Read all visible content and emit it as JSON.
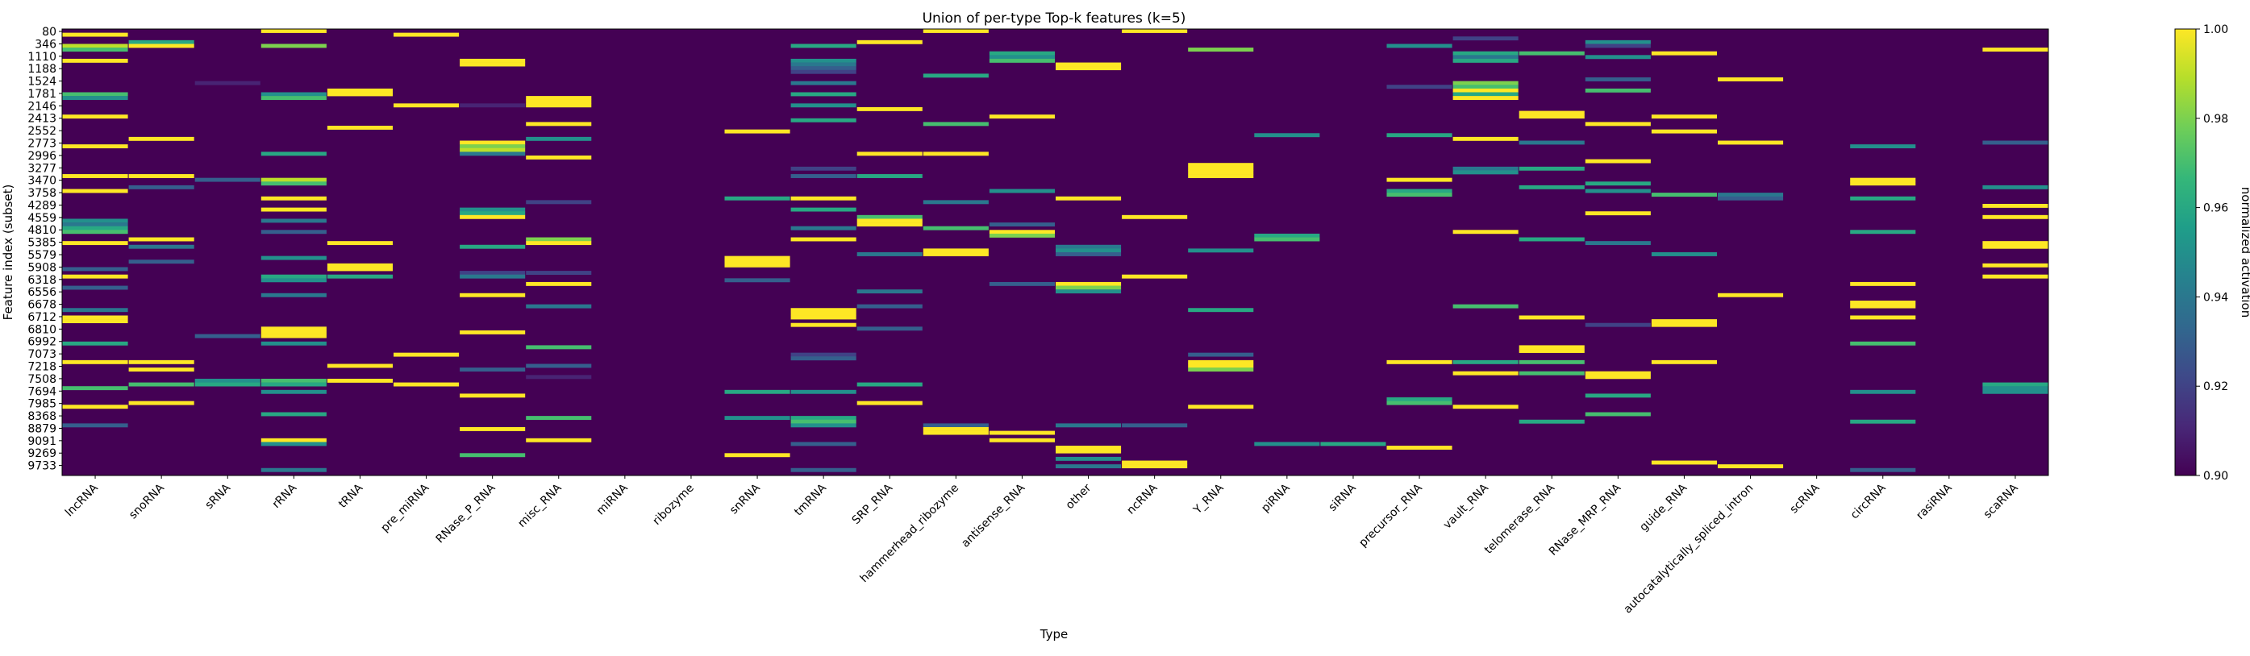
{
  "chart_data": {
    "type": "heatmap",
    "title": "Union of per-type Top-k features (k=5)",
    "xlabel": "Type",
    "ylabel": "Feature index (subset)",
    "colorbar": {
      "label": "normalized activation",
      "min": 0.9,
      "max": 1.0,
      "ticks": [
        "0.90",
        "0.92",
        "0.94",
        "0.96",
        "0.98",
        "1.00"
      ],
      "colormap": "viridis",
      "colors": [
        "#440154",
        "#482878",
        "#3e4989",
        "#31688e",
        "#26828e",
        "#1f9e89",
        "#35b779",
        "#6ece58",
        "#b5de2b",
        "#fde725"
      ]
    },
    "x_categories": [
      "lncRNA",
      "snoRNA",
      "sRNA",
      "rRNA",
      "tRNA",
      "pre_miRNA",
      "RNase_P_RNA",
      "misc_RNA",
      "miRNA",
      "ribozyme",
      "snRNA",
      "tmRNA",
      "SRP_RNA",
      "hammerhead_ribozyme",
      "antisense_RNA",
      "other",
      "ncRNA",
      "Y_RNA",
      "piRNA",
      "siRNA",
      "precursor_RNA",
      "vault_RNA",
      "telomerase_RNA",
      "RNase_MRP_RNA",
      "guide_RNA",
      "autocatalytically_spliced_intron",
      "scRNA",
      "circRNA",
      "rasiRNA",
      "scaRNA"
    ],
    "y_tick_labels": [
      "80",
      "346",
      "1110",
      "1188",
      "1524",
      "1781",
      "2146",
      "2413",
      "2552",
      "2773",
      "2996",
      "3277",
      "3470",
      "3758",
      "4289",
      "4559",
      "4810",
      "5385",
      "5579",
      "5908",
      "6318",
      "6556",
      "6678",
      "6712",
      "6810",
      "6992",
      "7073",
      "7218",
      "7508",
      "7694",
      "7985",
      "8368",
      "8879",
      "9091",
      "9269",
      "9733"
    ],
    "n_rows": 120,
    "background_value": 0.9,
    "cells": [
      [
        0,
        1,
        1.0
      ],
      [
        0,
        4,
        0.99
      ],
      [
        0,
        5,
        0.97
      ],
      [
        0,
        8,
        1.0
      ],
      [
        0,
        17,
        0.97
      ],
      [
        0,
        18,
        0.95
      ],
      [
        0,
        23,
        1.0
      ],
      [
        0,
        31,
        1.0
      ],
      [
        0,
        39,
        1.0
      ],
      [
        0,
        43,
        1.0
      ],
      [
        0,
        51,
        0.95
      ],
      [
        0,
        52,
        0.94
      ],
      [
        0,
        53,
        0.96
      ],
      [
        0,
        54,
        0.97
      ],
      [
        0,
        57,
        1.0
      ],
      [
        0,
        64,
        0.93
      ],
      [
        0,
        66,
        1.0
      ],
      [
        0,
        69,
        0.93
      ],
      [
        0,
        75,
        0.94
      ],
      [
        0,
        77,
        1.0
      ],
      [
        0,
        78,
        1.0
      ],
      [
        0,
        84,
        0.96
      ],
      [
        0,
        89,
        1.0
      ],
      [
        0,
        96,
        0.97
      ],
      [
        0,
        101,
        1.0
      ],
      [
        0,
        106,
        0.93
      ],
      [
        1,
        3,
        0.96
      ],
      [
        1,
        4,
        1.0
      ],
      [
        1,
        29,
        1.0
      ],
      [
        1,
        39,
        1.0
      ],
      [
        1,
        42,
        0.93
      ],
      [
        1,
        56,
        1.0
      ],
      [
        1,
        58,
        0.94
      ],
      [
        1,
        62,
        0.93
      ],
      [
        1,
        89,
        1.0
      ],
      [
        1,
        91,
        1.0
      ],
      [
        1,
        95,
        0.97
      ],
      [
        1,
        100,
        1.0
      ],
      [
        2,
        14,
        0.91
      ],
      [
        2,
        40,
        0.93
      ],
      [
        2,
        82,
        0.93
      ],
      [
        2,
        94,
        0.95
      ],
      [
        2,
        95,
        0.96
      ],
      [
        3,
        0,
        1.0
      ],
      [
        3,
        4,
        0.98
      ],
      [
        3,
        17,
        0.95
      ],
      [
        3,
        18,
        0.97
      ],
      [
        3,
        33,
        0.96
      ],
      [
        3,
        40,
        0.99
      ],
      [
        3,
        41,
        0.97
      ],
      [
        3,
        45,
        1.0
      ],
      [
        3,
        48,
        1.0
      ],
      [
        3,
        51,
        0.94
      ],
      [
        3,
        54,
        0.93
      ],
      [
        3,
        61,
        0.95
      ],
      [
        3,
        66,
        0.96
      ],
      [
        3,
        67,
        0.95
      ],
      [
        3,
        71,
        0.94
      ],
      [
        3,
        80,
        1.0
      ],
      [
        3,
        81,
        1.0
      ],
      [
        3,
        82,
        1.0
      ],
      [
        3,
        84,
        0.95
      ],
      [
        3,
        94,
        0.97
      ],
      [
        3,
        95,
        0.96
      ],
      [
        3,
        97,
        0.95
      ],
      [
        3,
        103,
        0.96
      ],
      [
        3,
        110,
        1.0
      ],
      [
        3,
        111,
        0.95
      ],
      [
        3,
        118,
        0.94
      ],
      [
        4,
        16,
        1.0
      ],
      [
        4,
        17,
        1.0
      ],
      [
        4,
        26,
        1.0
      ],
      [
        4,
        57,
        1.0
      ],
      [
        4,
        63,
        1.0
      ],
      [
        4,
        64,
        1.0
      ],
      [
        4,
        66,
        0.96
      ],
      [
        4,
        90,
        1.0
      ],
      [
        4,
        94,
        1.0
      ],
      [
        5,
        1,
        1.0
      ],
      [
        5,
        20,
        1.0
      ],
      [
        5,
        87,
        1.0
      ],
      [
        5,
        95,
        1.0
      ],
      [
        6,
        8,
        1.0
      ],
      [
        6,
        9,
        1.0
      ],
      [
        6,
        20,
        0.91
      ],
      [
        6,
        30,
        1.0
      ],
      [
        6,
        31,
        0.98
      ],
      [
        6,
        32,
        0.99
      ],
      [
        6,
        33,
        0.94
      ],
      [
        6,
        48,
        0.95
      ],
      [
        6,
        49,
        0.96
      ],
      [
        6,
        50,
        1.0
      ],
      [
        6,
        58,
        0.96
      ],
      [
        6,
        65,
        0.92
      ],
      [
        6,
        66,
        0.94
      ],
      [
        6,
        71,
        1.0
      ],
      [
        6,
        81,
        1.0
      ],
      [
        6,
        91,
        0.93
      ],
      [
        6,
        98,
        1.0
      ],
      [
        6,
        107,
        1.0
      ],
      [
        6,
        114,
        0.97
      ],
      [
        7,
        18,
        1.0
      ],
      [
        7,
        19,
        1.0
      ],
      [
        7,
        20,
        1.0
      ],
      [
        7,
        25,
        1.0
      ],
      [
        7,
        29,
        0.95
      ],
      [
        7,
        34,
        1.0
      ],
      [
        7,
        46,
        0.92
      ],
      [
        7,
        56,
        0.98
      ],
      [
        7,
        57,
        1.0
      ],
      [
        7,
        65,
        0.92
      ],
      [
        7,
        68,
        1.0
      ],
      [
        7,
        74,
        0.94
      ],
      [
        7,
        85,
        0.97
      ],
      [
        7,
        90,
        0.93
      ],
      [
        7,
        93,
        0.91
      ],
      [
        7,
        104,
        0.97
      ],
      [
        7,
        110,
        1.0
      ],
      [
        10,
        27,
        1.0
      ],
      [
        10,
        45,
        0.96
      ],
      [
        10,
        61,
        1.0
      ],
      [
        10,
        62,
        1.0
      ],
      [
        10,
        63,
        1.0
      ],
      [
        10,
        67,
        0.93
      ],
      [
        10,
        97,
        0.96
      ],
      [
        10,
        104,
        0.95
      ],
      [
        10,
        114,
        1.0
      ],
      [
        11,
        4,
        0.96
      ],
      [
        11,
        8,
        0.95
      ],
      [
        11,
        9,
        0.94
      ],
      [
        11,
        10,
        0.93
      ],
      [
        11,
        11,
        0.92
      ],
      [
        11,
        14,
        0.94
      ],
      [
        11,
        17,
        0.96
      ],
      [
        11,
        20,
        0.95
      ],
      [
        11,
        24,
        0.96
      ],
      [
        11,
        37,
        0.92
      ],
      [
        11,
        39,
        0.93
      ],
      [
        11,
        45,
        1.0
      ],
      [
        11,
        48,
        0.96
      ],
      [
        11,
        53,
        0.94
      ],
      [
        11,
        56,
        1.0
      ],
      [
        11,
        75,
        1.0
      ],
      [
        11,
        76,
        1.0
      ],
      [
        11,
        77,
        1.0
      ],
      [
        11,
        79,
        1.0
      ],
      [
        11,
        87,
        0.92
      ],
      [
        11,
        88,
        0.93
      ],
      [
        11,
        97,
        0.95
      ],
      [
        11,
        104,
        0.96
      ],
      [
        11,
        105,
        0.97
      ],
      [
        11,
        106,
        0.95
      ],
      [
        11,
        111,
        0.93
      ],
      [
        11,
        118,
        0.93
      ],
      [
        12,
        3,
        1.0
      ],
      [
        12,
        21,
        1.0
      ],
      [
        12,
        33,
        1.0
      ],
      [
        12,
        39,
        0.96
      ],
      [
        12,
        50,
        0.97
      ],
      [
        12,
        51,
        1.0
      ],
      [
        12,
        52,
        1.0
      ],
      [
        12,
        60,
        0.94
      ],
      [
        12,
        70,
        0.94
      ],
      [
        12,
        74,
        0.93
      ],
      [
        12,
        80,
        0.93
      ],
      [
        12,
        95,
        0.96
      ],
      [
        12,
        100,
        1.0
      ],
      [
        13,
        0,
        1.0
      ],
      [
        13,
        12,
        0.96
      ],
      [
        13,
        25,
        0.97
      ],
      [
        13,
        33,
        1.0
      ],
      [
        13,
        46,
        0.94
      ],
      [
        13,
        53,
        0.97
      ],
      [
        13,
        59,
        1.0
      ],
      [
        13,
        60,
        1.0
      ],
      [
        13,
        106,
        0.93
      ],
      [
        13,
        107,
        1.0
      ],
      [
        13,
        108,
        1.0
      ],
      [
        14,
        6,
        0.96
      ],
      [
        14,
        7,
        0.95
      ],
      [
        14,
        8,
        0.97
      ],
      [
        14,
        23,
        1.0
      ],
      [
        14,
        43,
        0.95
      ],
      [
        14,
        52,
        0.93
      ],
      [
        14,
        54,
        1.0
      ],
      [
        14,
        55,
        0.98
      ],
      [
        14,
        68,
        0.93
      ],
      [
        14,
        108,
        1.0
      ],
      [
        14,
        110,
        1.0
      ],
      [
        15,
        9,
        1.0
      ],
      [
        15,
        10,
        1.0
      ],
      [
        15,
        45,
        1.0
      ],
      [
        15,
        58,
        0.94
      ],
      [
        15,
        59,
        0.95
      ],
      [
        15,
        60,
        0.93
      ],
      [
        15,
        68,
        1.0
      ],
      [
        15,
        69,
        0.98
      ],
      [
        15,
        70,
        0.95
      ],
      [
        15,
        106,
        0.94
      ],
      [
        15,
        112,
        1.0
      ],
      [
        15,
        113,
        1.0
      ],
      [
        15,
        115,
        0.95
      ],
      [
        15,
        117,
        0.94
      ],
      [
        16,
        0,
        1.0
      ],
      [
        16,
        50,
        1.0
      ],
      [
        16,
        66,
        1.0
      ],
      [
        16,
        106,
        0.93
      ],
      [
        16,
        116,
        1.0
      ],
      [
        16,
        117,
        1.0
      ],
      [
        17,
        5,
        0.98
      ],
      [
        17,
        36,
        1.0
      ],
      [
        17,
        37,
        1.0
      ],
      [
        17,
        38,
        1.0
      ],
      [
        17,
        39,
        1.0
      ],
      [
        17,
        59,
        0.95
      ],
      [
        17,
        75,
        0.96
      ],
      [
        17,
        87,
        0.93
      ],
      [
        17,
        89,
        1.0
      ],
      [
        17,
        90,
        1.0
      ],
      [
        17,
        91,
        0.98
      ],
      [
        17,
        101,
        1.0
      ],
      [
        18,
        28,
        0.95
      ],
      [
        18,
        55,
        0.96
      ],
      [
        18,
        56,
        0.97
      ],
      [
        18,
        111,
        0.95
      ],
      [
        19,
        111,
        0.96
      ],
      [
        20,
        4,
        0.95
      ],
      [
        20,
        15,
        0.92
      ],
      [
        20,
        28,
        0.96
      ],
      [
        20,
        40,
        1.0
      ],
      [
        20,
        43,
        0.96
      ],
      [
        20,
        44,
        0.97
      ],
      [
        20,
        89,
        1.0
      ],
      [
        20,
        99,
        0.96
      ],
      [
        20,
        100,
        0.97
      ],
      [
        20,
        112,
        1.0
      ],
      [
        21,
        2,
        0.92
      ],
      [
        21,
        6,
        0.96
      ],
      [
        21,
        7,
        0.94
      ],
      [
        21,
        8,
        0.96
      ],
      [
        21,
        14,
        0.98
      ],
      [
        21,
        15,
        0.97
      ],
      [
        21,
        16,
        1.0
      ],
      [
        21,
        17,
        0.96
      ],
      [
        21,
        18,
        1.0
      ],
      [
        21,
        29,
        1.0
      ],
      [
        21,
        37,
        0.94
      ],
      [
        21,
        38,
        0.95
      ],
      [
        21,
        54,
        1.0
      ],
      [
        21,
        74,
        0.97
      ],
      [
        21,
        89,
        0.96
      ],
      [
        21,
        92,
        1.0
      ],
      [
        21,
        101,
        1.0
      ],
      [
        22,
        6,
        0.97
      ],
      [
        22,
        22,
        1.0
      ],
      [
        22,
        23,
        1.0
      ],
      [
        22,
        30,
        0.94
      ],
      [
        22,
        37,
        0.96
      ],
      [
        22,
        42,
        0.96
      ],
      [
        22,
        56,
        0.96
      ],
      [
        22,
        77,
        1.0
      ],
      [
        22,
        85,
        1.0
      ],
      [
        22,
        86,
        1.0
      ],
      [
        22,
        89,
        0.97
      ],
      [
        22,
        92,
        0.97
      ],
      [
        22,
        105,
        0.96
      ],
      [
        23,
        3,
        0.95
      ],
      [
        23,
        4,
        0.92
      ],
      [
        23,
        7,
        0.95
      ],
      [
        23,
        13,
        0.93
      ],
      [
        23,
        16,
        0.97
      ],
      [
        23,
        25,
        1.0
      ],
      [
        23,
        35,
        1.0
      ],
      [
        23,
        41,
        0.96
      ],
      [
        23,
        43,
        0.95
      ],
      [
        23,
        49,
        1.0
      ],
      [
        23,
        57,
        0.94
      ],
      [
        23,
        79,
        0.92
      ],
      [
        23,
        92,
        1.0
      ],
      [
        23,
        93,
        1.0
      ],
      [
        23,
        98,
        0.96
      ],
      [
        23,
        103,
        0.97
      ],
      [
        24,
        6,
        1.0
      ],
      [
        24,
        23,
        1.0
      ],
      [
        24,
        27,
        1.0
      ],
      [
        24,
        44,
        0.97
      ],
      [
        24,
        60,
        0.95
      ],
      [
        24,
        78,
        1.0
      ],
      [
        24,
        79,
        1.0
      ],
      [
        24,
        89,
        1.0
      ],
      [
        24,
        116,
        1.0
      ],
      [
        25,
        13,
        1.0
      ],
      [
        25,
        30,
        1.0
      ],
      [
        25,
        44,
        0.94
      ],
      [
        25,
        45,
        0.93
      ],
      [
        25,
        71,
        1.0
      ],
      [
        25,
        117,
        1.0
      ],
      [
        27,
        31,
        0.95
      ],
      [
        27,
        40,
        1.0
      ],
      [
        27,
        41,
        1.0
      ],
      [
        27,
        45,
        0.96
      ],
      [
        27,
        54,
        0.96
      ],
      [
        27,
        68,
        1.0
      ],
      [
        27,
        73,
        1.0
      ],
      [
        27,
        74,
        1.0
      ],
      [
        27,
        77,
        1.0
      ],
      [
        27,
        84,
        0.97
      ],
      [
        27,
        97,
        0.95
      ],
      [
        27,
        105,
        0.96
      ],
      [
        27,
        118,
        0.93
      ],
      [
        29,
        5,
        1.0
      ],
      [
        29,
        30,
        0.93
      ],
      [
        29,
        42,
        0.95
      ],
      [
        29,
        47,
        1.0
      ],
      [
        29,
        50,
        1.0
      ],
      [
        29,
        57,
        1.0
      ],
      [
        29,
        58,
        1.0
      ],
      [
        29,
        63,
        1.0
      ],
      [
        29,
        66,
        1.0
      ],
      [
        29,
        95,
        0.96
      ],
      [
        29,
        96,
        0.95
      ],
      [
        29,
        97,
        0.95
      ]
    ]
  }
}
